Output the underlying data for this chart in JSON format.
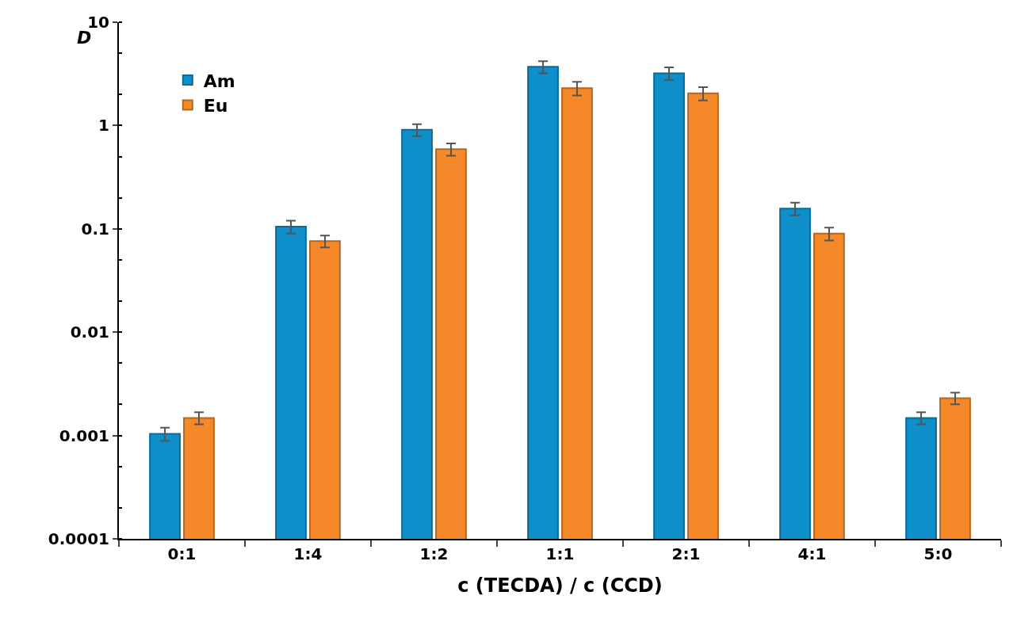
{
  "chart_data": {
    "type": "bar",
    "xlabel": "c (TECDA) / c (CCD)",
    "ylabel": "D",
    "categories": [
      "0:1",
      "1:4",
      "1:2",
      "1:1",
      "2:1",
      "4:1",
      "5:0"
    ],
    "series": [
      {
        "name": "Am",
        "color": "#0e8fc9",
        "values": [
          0.00104,
          0.105,
          0.91,
          3.7,
          3.2,
          0.157,
          0.00148
        ],
        "errors": [
          0.00015,
          0.015,
          0.12,
          0.5,
          0.45,
          0.022,
          0.0002
        ]
      },
      {
        "name": "Eu",
        "color": "#f5892a",
        "values": [
          0.00148,
          0.076,
          0.59,
          2.3,
          2.05,
          0.09,
          0.0023
        ],
        "errors": [
          0.0002,
          0.01,
          0.08,
          0.35,
          0.3,
          0.013,
          0.0003
        ]
      }
    ],
    "log": "y",
    "ylim": [
      0.0001,
      10
    ],
    "yticks": [
      0.0001,
      0.001,
      0.01,
      0.1,
      1,
      10
    ],
    "grid": false,
    "legend": "top left"
  }
}
